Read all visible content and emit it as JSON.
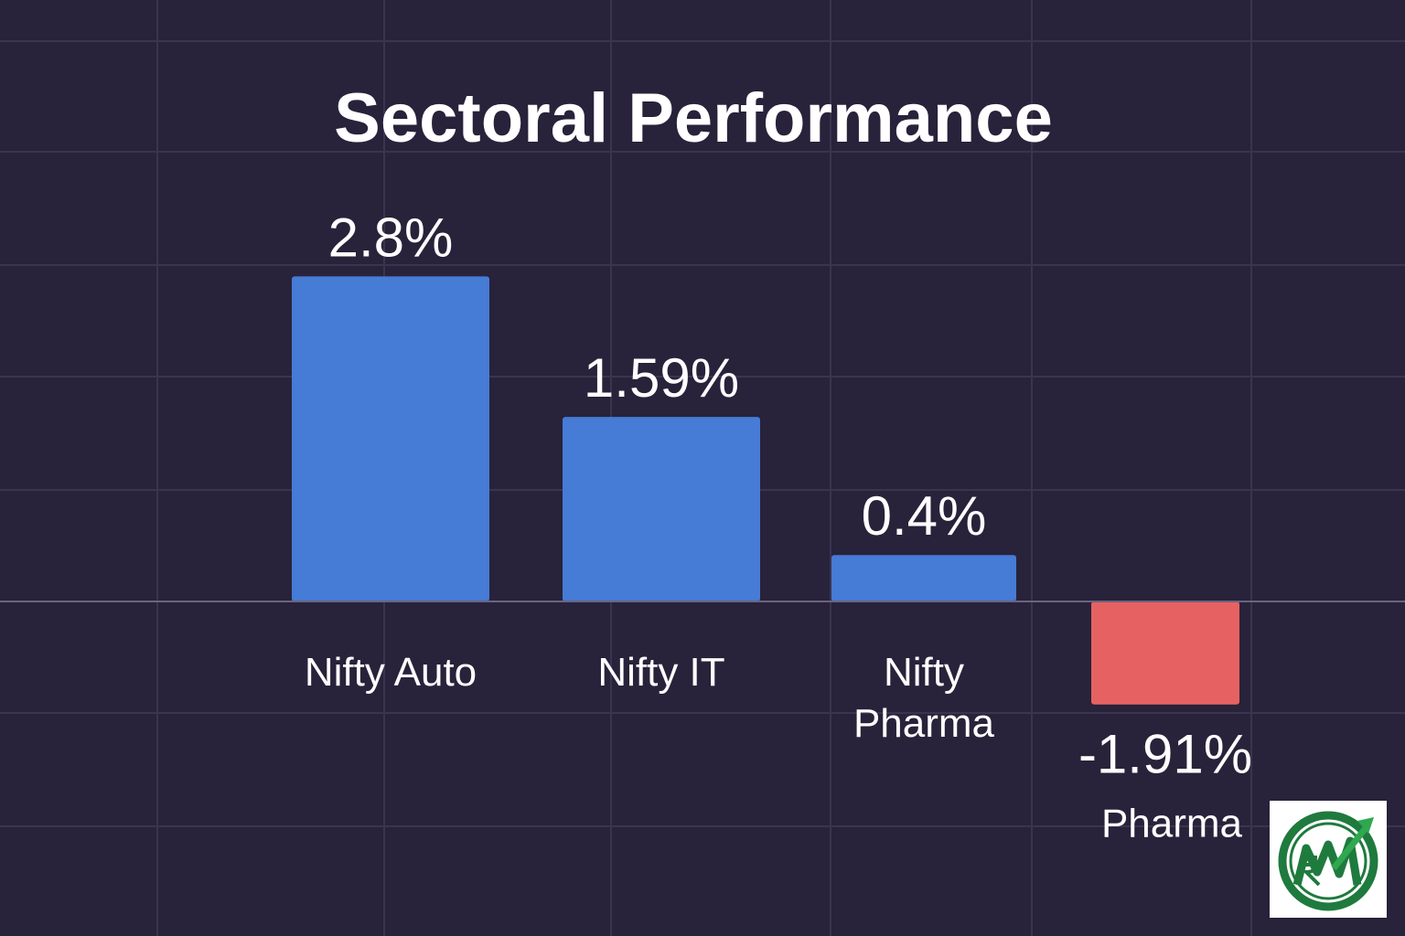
{
  "chart_data": {
    "type": "bar",
    "title": "Sectoral Performance",
    "categories": [
      [
        "Nifty Auto"
      ],
      [
        "Nifty IT"
      ],
      [
        "Nifty",
        "Pharma"
      ],
      [
        "Pharma"
      ]
    ],
    "values": [
      2.8,
      1.59,
      0.4,
      -1.91
    ],
    "value_labels": [
      "2.8%",
      "1.59%",
      "0.4%",
      "-1.91%"
    ],
    "ylim": [
      -1.91,
      2.8
    ],
    "grid": true,
    "colors": {
      "positive": "#467bd6",
      "negative": "#e66262"
    }
  },
  "logo": {
    "icon": "rupee-growth-arrow-logo",
    "colors": {
      "ring": "#1f7a3e",
      "arrow": "#2fa84f"
    }
  },
  "background": "#28223a"
}
